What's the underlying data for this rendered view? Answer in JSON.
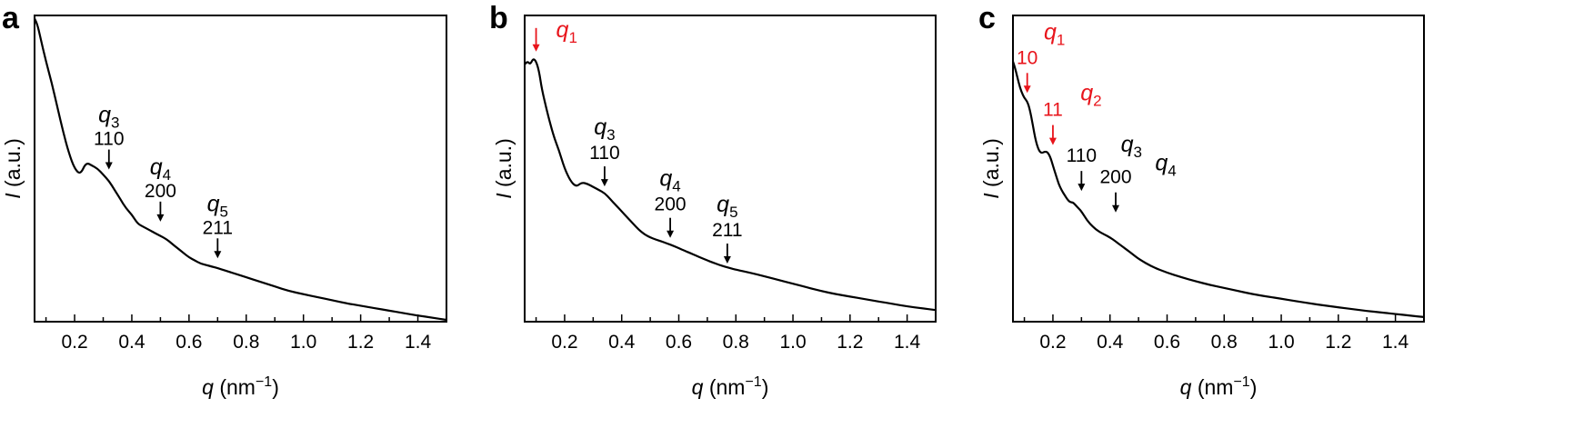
{
  "colors": {
    "curve": "#000000",
    "axis": "#000000",
    "highlight": "#e8141b"
  },
  "chart_data": [
    {
      "panel": "a",
      "type": "line",
      "xlabel_var": "q",
      "xlabel_unit": "(nm",
      "xlabel_exp": "−1",
      "xlabel_close": ")",
      "ylabel_var": "I",
      "ylabel_unit": "(a.u.)",
      "xlim": [
        0.06,
        1.5
      ],
      "ylim": [
        0,
        1
      ],
      "y_ticks_shown": false,
      "xticks": [
        0.2,
        0.4,
        0.6,
        0.8,
        1.0,
        1.2,
        1.4
      ],
      "xtick_labels": [
        "0.2",
        "0.4",
        "0.6",
        "0.8",
        "1.0",
        "1.2",
        "1.4"
      ],
      "series": [
        {
          "x": [
            0.06,
            0.07,
            0.08,
            0.1,
            0.12,
            0.14,
            0.16,
            0.18,
            0.2,
            0.22,
            0.24,
            0.26,
            0.28,
            0.3,
            0.32,
            0.34,
            0.36,
            0.38,
            0.4,
            0.42,
            0.44,
            0.46,
            0.48,
            0.5,
            0.52,
            0.54,
            0.56,
            0.58,
            0.6,
            0.62,
            0.64,
            0.66,
            0.68,
            0.7,
            0.75,
            0.8,
            0.85,
            0.9,
            0.95,
            1.0,
            1.05,
            1.1,
            1.15,
            1.2,
            1.25,
            1.3,
            1.35,
            1.4,
            1.45,
            1.5
          ],
          "y": [
            0.99,
            0.97,
            0.93,
            0.85,
            0.78,
            0.7,
            0.62,
            0.55,
            0.5,
            0.48,
            0.52,
            0.51,
            0.5,
            0.48,
            0.46,
            0.43,
            0.4,
            0.37,
            0.35,
            0.32,
            0.31,
            0.3,
            0.29,
            0.28,
            0.27,
            0.255,
            0.24,
            0.225,
            0.21,
            0.2,
            0.19,
            0.185,
            0.18,
            0.175,
            0.16,
            0.145,
            0.13,
            0.115,
            0.1,
            0.09,
            0.08,
            0.07,
            0.06,
            0.052,
            0.044,
            0.036,
            0.028,
            0.02,
            0.013,
            0.006
          ]
        }
      ],
      "annotations": [
        {
          "q": "q",
          "sub": "3",
          "miller": "110",
          "x": 0.32,
          "arrow_tip_y": 0.485,
          "highlight": false
        },
        {
          "q": "q",
          "sub": "4",
          "miller": "200",
          "x": 0.5,
          "arrow_tip_y": 0.315,
          "highlight": false
        },
        {
          "q": "q",
          "sub": "5",
          "miller": "211",
          "x": 0.7,
          "arrow_tip_y": 0.195,
          "highlight": false
        }
      ]
    },
    {
      "panel": "b",
      "type": "line",
      "xlabel_var": "q",
      "xlabel_unit": "(nm",
      "xlabel_exp": "−1",
      "xlabel_close": ")",
      "ylabel_var": "I",
      "ylabel_unit": "(a.u.)",
      "xlim": [
        0.06,
        1.5
      ],
      "ylim": [
        0,
        1
      ],
      "y_ticks_shown": false,
      "xticks": [
        0.2,
        0.4,
        0.6,
        0.8,
        1.0,
        1.2,
        1.4
      ],
      "xtick_labels": [
        "0.2",
        "0.4",
        "0.6",
        "0.8",
        "1.0",
        "1.2",
        "1.4"
      ],
      "series": [
        {
          "x": [
            0.06,
            0.07,
            0.08,
            0.09,
            0.1,
            0.11,
            0.12,
            0.14,
            0.16,
            0.18,
            0.2,
            0.22,
            0.24,
            0.26,
            0.28,
            0.3,
            0.32,
            0.34,
            0.36,
            0.38,
            0.4,
            0.42,
            0.44,
            0.46,
            0.48,
            0.5,
            0.52,
            0.54,
            0.56,
            0.58,
            0.6,
            0.62,
            0.64,
            0.66,
            0.68,
            0.7,
            0.72,
            0.74,
            0.76,
            0.78,
            0.8,
            0.85,
            0.9,
            0.95,
            1.0,
            1.05,
            1.1,
            1.15,
            1.2,
            1.25,
            1.3,
            1.35,
            1.4,
            1.45,
            1.5
          ],
          "y": [
            0.84,
            0.85,
            0.84,
            0.86,
            0.85,
            0.82,
            0.76,
            0.68,
            0.61,
            0.56,
            0.5,
            0.46,
            0.44,
            0.455,
            0.45,
            0.44,
            0.43,
            0.42,
            0.4,
            0.38,
            0.36,
            0.34,
            0.32,
            0.3,
            0.285,
            0.275,
            0.268,
            0.262,
            0.255,
            0.248,
            0.24,
            0.232,
            0.224,
            0.216,
            0.208,
            0.2,
            0.193,
            0.186,
            0.18,
            0.175,
            0.17,
            0.16,
            0.148,
            0.136,
            0.124,
            0.112,
            0.1,
            0.09,
            0.082,
            0.074,
            0.066,
            0.058,
            0.05,
            0.044,
            0.038
          ]
        }
      ],
      "annotations": [
        {
          "q": "q",
          "sub": "1",
          "miller": "",
          "x": 0.1,
          "arrow_tip_y": 0.87,
          "highlight": true
        },
        {
          "q": "q",
          "sub": "3",
          "miller": "110",
          "x": 0.34,
          "arrow_tip_y": 0.43,
          "highlight": false
        },
        {
          "q": "q",
          "sub": "4",
          "miller": "200",
          "x": 0.57,
          "arrow_tip_y": 0.262,
          "highlight": false
        },
        {
          "q": "q",
          "sub": "5",
          "miller": "211",
          "x": 0.77,
          "arrow_tip_y": 0.178,
          "highlight": false
        }
      ]
    },
    {
      "panel": "c",
      "type": "line",
      "xlabel_var": "q",
      "xlabel_unit": "(nm",
      "xlabel_exp": "−1",
      "xlabel_close": ")",
      "ylabel_var": "I",
      "ylabel_unit": "(a.u.)",
      "xlim": [
        0.06,
        1.5
      ],
      "ylim": [
        0,
        1
      ],
      "y_ticks_shown": false,
      "xticks": [
        0.2,
        0.4,
        0.6,
        0.8,
        1.0,
        1.2,
        1.4
      ],
      "xtick_labels": [
        "0.2",
        "0.4",
        "0.6",
        "0.8",
        "1.0",
        "1.2",
        "1.4"
      ],
      "series": [
        {
          "x": [
            0.06,
            0.07,
            0.08,
            0.09,
            0.1,
            0.11,
            0.12,
            0.13,
            0.14,
            0.15,
            0.16,
            0.17,
            0.18,
            0.19,
            0.2,
            0.21,
            0.22,
            0.23,
            0.24,
            0.25,
            0.26,
            0.27,
            0.28,
            0.29,
            0.3,
            0.32,
            0.34,
            0.36,
            0.38,
            0.4,
            0.42,
            0.44,
            0.46,
            0.48,
            0.5,
            0.55,
            0.6,
            0.65,
            0.7,
            0.75,
            0.8,
            0.85,
            0.9,
            0.95,
            1.0,
            1.05,
            1.1,
            1.15,
            1.2,
            1.25,
            1.3,
            1.35,
            1.4,
            1.45,
            1.5
          ],
          "y": [
            0.85,
            0.82,
            0.78,
            0.75,
            0.73,
            0.72,
            0.69,
            0.64,
            0.59,
            0.56,
            0.55,
            0.555,
            0.555,
            0.54,
            0.51,
            0.48,
            0.45,
            0.43,
            0.415,
            0.4,
            0.39,
            0.39,
            0.38,
            0.37,
            0.36,
            0.33,
            0.31,
            0.295,
            0.285,
            0.275,
            0.262,
            0.248,
            0.234,
            0.22,
            0.205,
            0.178,
            0.16,
            0.145,
            0.132,
            0.12,
            0.11,
            0.1,
            0.09,
            0.082,
            0.075,
            0.067,
            0.06,
            0.053,
            0.047,
            0.041,
            0.035,
            0.03,
            0.025,
            0.02,
            0.015
          ]
        }
      ],
      "annotations": [
        {
          "miller": "10",
          "q": "q",
          "sub": "1",
          "x": 0.11,
          "arrow_tip_y": 0.735,
          "highlight": true
        },
        {
          "miller": "11",
          "q": "q",
          "sub": "2",
          "x": 0.2,
          "arrow_tip_y": 0.565,
          "highlight": true
        },
        {
          "miller": "110",
          "q": "q",
          "sub": "3",
          "x": 0.3,
          "arrow_tip_y": 0.415,
          "highlight": false
        },
        {
          "miller": "200",
          "q": "q",
          "sub": "4",
          "x": 0.42,
          "arrow_tip_y": 0.345,
          "highlight": false
        }
      ]
    }
  ]
}
